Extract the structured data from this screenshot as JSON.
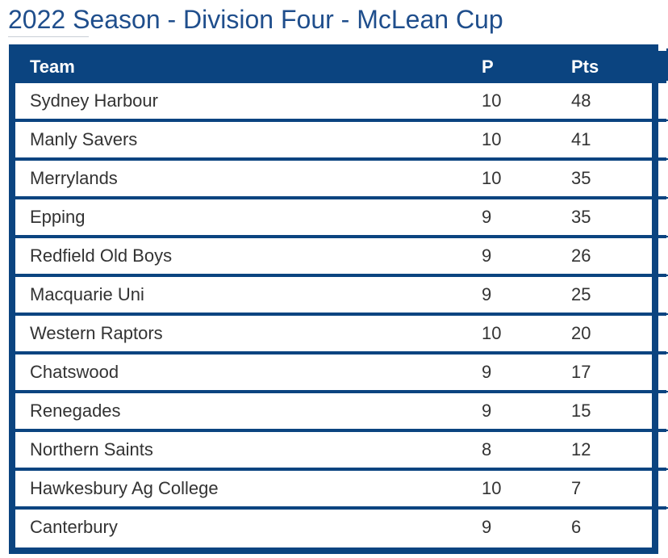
{
  "page": {
    "title": "2022 Season - Division Four - McLean Cup"
  },
  "table": {
    "headers": {
      "team": "Team",
      "played": "P",
      "points": "Pts"
    },
    "rows": [
      {
        "team": "Sydney Harbour",
        "p": "10",
        "pts": "48"
      },
      {
        "team": "Manly Savers",
        "p": "10",
        "pts": "41"
      },
      {
        "team": "Merrylands",
        "p": "10",
        "pts": "35"
      },
      {
        "team": "Epping",
        "p": "9",
        "pts": "35"
      },
      {
        "team": "Redfield Old Boys",
        "p": "9",
        "pts": "26"
      },
      {
        "team": "Macquarie Uni",
        "p": "9",
        "pts": "25"
      },
      {
        "team": "Western Raptors",
        "p": "10",
        "pts": "20"
      },
      {
        "team": "Chatswood",
        "p": "9",
        "pts": "17"
      },
      {
        "team": "Renegades",
        "p": "9",
        "pts": "15"
      },
      {
        "team": "Northern Saints",
        "p": "8",
        "pts": "12"
      },
      {
        "team": "Hawkesbury Ag College",
        "p": "10",
        "pts": "7"
      },
      {
        "team": "Canterbury",
        "p": "9",
        "pts": "6"
      }
    ]
  },
  "colors": {
    "header_bg": "#0b4480",
    "title": "#1f4e8c",
    "row_text": "#333333"
  }
}
